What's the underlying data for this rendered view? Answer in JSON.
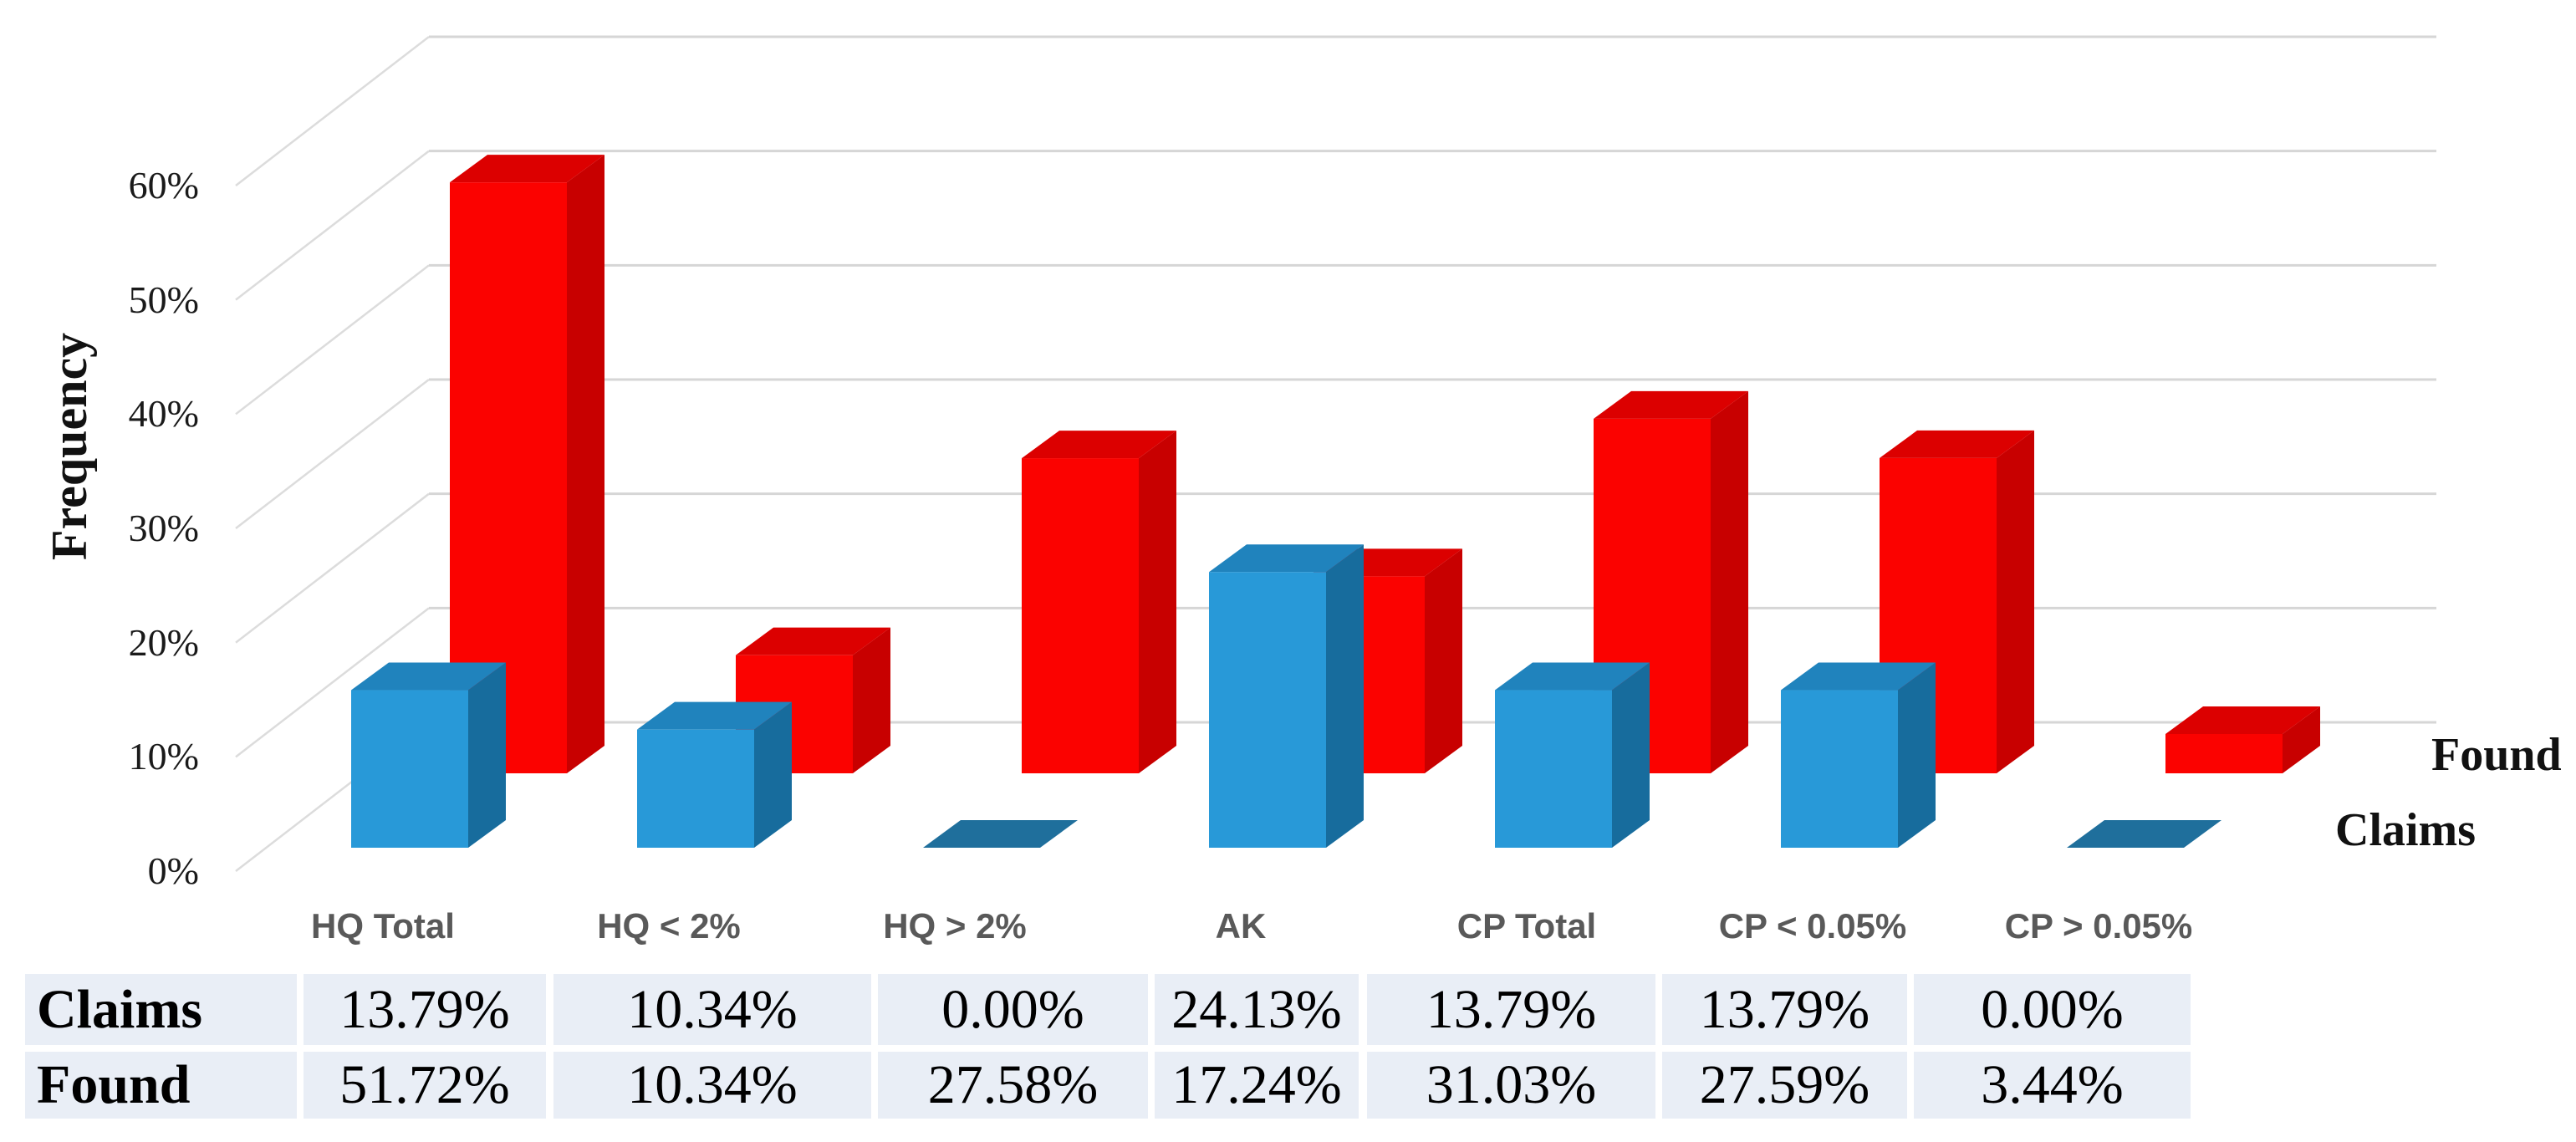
{
  "chart_data": {
    "type": "bar",
    "variant": "3d-clustered-column",
    "title": "",
    "xlabel": "",
    "ylabel": "Frequency",
    "categories": [
      "HQ Total",
      "HQ < 2%",
      "HQ > 2%",
      "AK",
      "CP Total",
      "CP < 0.05%",
      "CP > 0.05%"
    ],
    "series": [
      {
        "name": "Claims",
        "values": [
          13.79,
          10.34,
          0.0,
          24.13,
          13.79,
          13.79,
          0.0
        ],
        "color": "#2899d8",
        "color_top": "#2083bd",
        "color_side": "#176c9d",
        "color_flat": "#1f6f9c"
      },
      {
        "name": "Found",
        "values": [
          51.72,
          10.34,
          27.58,
          17.24,
          31.03,
          27.59,
          3.44
        ],
        "color": "#fb0200",
        "color_top": "#dc0000",
        "color_side": "#c80000",
        "color_flat": "#b00000"
      }
    ],
    "y_ticks": [
      "0%",
      "10%",
      "20%",
      "30%",
      "40%",
      "50%",
      "60%"
    ],
    "ylim": [
      0,
      60
    ],
    "grid": true,
    "gridline_color": "#d6d6d6",
    "legend_position": "right"
  },
  "table": {
    "rows": [
      {
        "label": "Claims",
        "values": [
          "13.79%",
          "10.34%",
          "0.00%",
          "24.13%",
          "13.79%",
          "13.79%",
          "0.00%"
        ]
      },
      {
        "label": "Found",
        "values": [
          "51.72%",
          "10.34%",
          "27.58%",
          "17.24%",
          "31.03%",
          "27.59%",
          "3.44%"
        ]
      }
    ],
    "cell_background": "#e9eef6"
  },
  "colors": {
    "background": "#ffffff",
    "claims_bar": "#2899d8",
    "found_bar": "#fb0200",
    "category_label": "#595959",
    "gridline": "#d6d6d6"
  }
}
